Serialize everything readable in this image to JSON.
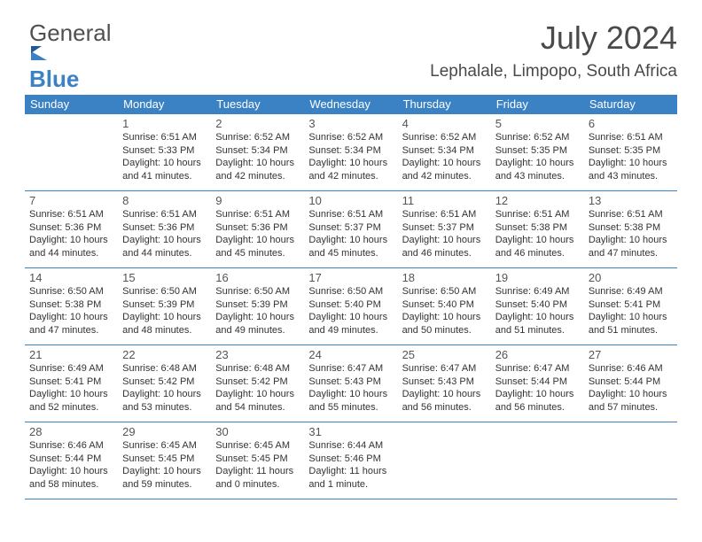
{
  "logo": {
    "part1": "General",
    "part2": "Blue"
  },
  "header": {
    "month_title": "July 2024",
    "location": "Lephalale, Limpopo, South Africa"
  },
  "colors": {
    "header_bg": "#3b82c4",
    "header_text": "#ffffff",
    "day_num": "#555555",
    "body_text": "#333333",
    "logo_gray": "#505050",
    "logo_blue": "#3b82c4"
  },
  "day_headers": [
    "Sunday",
    "Monday",
    "Tuesday",
    "Wednesday",
    "Thursday",
    "Friday",
    "Saturday"
  ],
  "weeks": [
    [
      null,
      {
        "n": "1",
        "l1": "Sunrise: 6:51 AM",
        "l2": "Sunset: 5:33 PM",
        "l3": "Daylight: 10 hours",
        "l4": "and 41 minutes."
      },
      {
        "n": "2",
        "l1": "Sunrise: 6:52 AM",
        "l2": "Sunset: 5:34 PM",
        "l3": "Daylight: 10 hours",
        "l4": "and 42 minutes."
      },
      {
        "n": "3",
        "l1": "Sunrise: 6:52 AM",
        "l2": "Sunset: 5:34 PM",
        "l3": "Daylight: 10 hours",
        "l4": "and 42 minutes."
      },
      {
        "n": "4",
        "l1": "Sunrise: 6:52 AM",
        "l2": "Sunset: 5:34 PM",
        "l3": "Daylight: 10 hours",
        "l4": "and 42 minutes."
      },
      {
        "n": "5",
        "l1": "Sunrise: 6:52 AM",
        "l2": "Sunset: 5:35 PM",
        "l3": "Daylight: 10 hours",
        "l4": "and 43 minutes."
      },
      {
        "n": "6",
        "l1": "Sunrise: 6:51 AM",
        "l2": "Sunset: 5:35 PM",
        "l3": "Daylight: 10 hours",
        "l4": "and 43 minutes."
      }
    ],
    [
      {
        "n": "7",
        "l1": "Sunrise: 6:51 AM",
        "l2": "Sunset: 5:36 PM",
        "l3": "Daylight: 10 hours",
        "l4": "and 44 minutes."
      },
      {
        "n": "8",
        "l1": "Sunrise: 6:51 AM",
        "l2": "Sunset: 5:36 PM",
        "l3": "Daylight: 10 hours",
        "l4": "and 44 minutes."
      },
      {
        "n": "9",
        "l1": "Sunrise: 6:51 AM",
        "l2": "Sunset: 5:36 PM",
        "l3": "Daylight: 10 hours",
        "l4": "and 45 minutes."
      },
      {
        "n": "10",
        "l1": "Sunrise: 6:51 AM",
        "l2": "Sunset: 5:37 PM",
        "l3": "Daylight: 10 hours",
        "l4": "and 45 minutes."
      },
      {
        "n": "11",
        "l1": "Sunrise: 6:51 AM",
        "l2": "Sunset: 5:37 PM",
        "l3": "Daylight: 10 hours",
        "l4": "and 46 minutes."
      },
      {
        "n": "12",
        "l1": "Sunrise: 6:51 AM",
        "l2": "Sunset: 5:38 PM",
        "l3": "Daylight: 10 hours",
        "l4": "and 46 minutes."
      },
      {
        "n": "13",
        "l1": "Sunrise: 6:51 AM",
        "l2": "Sunset: 5:38 PM",
        "l3": "Daylight: 10 hours",
        "l4": "and 47 minutes."
      }
    ],
    [
      {
        "n": "14",
        "l1": "Sunrise: 6:50 AM",
        "l2": "Sunset: 5:38 PM",
        "l3": "Daylight: 10 hours",
        "l4": "and 47 minutes."
      },
      {
        "n": "15",
        "l1": "Sunrise: 6:50 AM",
        "l2": "Sunset: 5:39 PM",
        "l3": "Daylight: 10 hours",
        "l4": "and 48 minutes."
      },
      {
        "n": "16",
        "l1": "Sunrise: 6:50 AM",
        "l2": "Sunset: 5:39 PM",
        "l3": "Daylight: 10 hours",
        "l4": "and 49 minutes."
      },
      {
        "n": "17",
        "l1": "Sunrise: 6:50 AM",
        "l2": "Sunset: 5:40 PM",
        "l3": "Daylight: 10 hours",
        "l4": "and 49 minutes."
      },
      {
        "n": "18",
        "l1": "Sunrise: 6:50 AM",
        "l2": "Sunset: 5:40 PM",
        "l3": "Daylight: 10 hours",
        "l4": "and 50 minutes."
      },
      {
        "n": "19",
        "l1": "Sunrise: 6:49 AM",
        "l2": "Sunset: 5:40 PM",
        "l3": "Daylight: 10 hours",
        "l4": "and 51 minutes."
      },
      {
        "n": "20",
        "l1": "Sunrise: 6:49 AM",
        "l2": "Sunset: 5:41 PM",
        "l3": "Daylight: 10 hours",
        "l4": "and 51 minutes."
      }
    ],
    [
      {
        "n": "21",
        "l1": "Sunrise: 6:49 AM",
        "l2": "Sunset: 5:41 PM",
        "l3": "Daylight: 10 hours",
        "l4": "and 52 minutes."
      },
      {
        "n": "22",
        "l1": "Sunrise: 6:48 AM",
        "l2": "Sunset: 5:42 PM",
        "l3": "Daylight: 10 hours",
        "l4": "and 53 minutes."
      },
      {
        "n": "23",
        "l1": "Sunrise: 6:48 AM",
        "l2": "Sunset: 5:42 PM",
        "l3": "Daylight: 10 hours",
        "l4": "and 54 minutes."
      },
      {
        "n": "24",
        "l1": "Sunrise: 6:47 AM",
        "l2": "Sunset: 5:43 PM",
        "l3": "Daylight: 10 hours",
        "l4": "and 55 minutes."
      },
      {
        "n": "25",
        "l1": "Sunrise: 6:47 AM",
        "l2": "Sunset: 5:43 PM",
        "l3": "Daylight: 10 hours",
        "l4": "and 56 minutes."
      },
      {
        "n": "26",
        "l1": "Sunrise: 6:47 AM",
        "l2": "Sunset: 5:44 PM",
        "l3": "Daylight: 10 hours",
        "l4": "and 56 minutes."
      },
      {
        "n": "27",
        "l1": "Sunrise: 6:46 AM",
        "l2": "Sunset: 5:44 PM",
        "l3": "Daylight: 10 hours",
        "l4": "and 57 minutes."
      }
    ],
    [
      {
        "n": "28",
        "l1": "Sunrise: 6:46 AM",
        "l2": "Sunset: 5:44 PM",
        "l3": "Daylight: 10 hours",
        "l4": "and 58 minutes."
      },
      {
        "n": "29",
        "l1": "Sunrise: 6:45 AM",
        "l2": "Sunset: 5:45 PM",
        "l3": "Daylight: 10 hours",
        "l4": "and 59 minutes."
      },
      {
        "n": "30",
        "l1": "Sunrise: 6:45 AM",
        "l2": "Sunset: 5:45 PM",
        "l3": "Daylight: 11 hours",
        "l4": "and 0 minutes."
      },
      {
        "n": "31",
        "l1": "Sunrise: 6:44 AM",
        "l2": "Sunset: 5:46 PM",
        "l3": "Daylight: 11 hours",
        "l4": "and 1 minute."
      },
      null,
      null,
      null
    ]
  ]
}
